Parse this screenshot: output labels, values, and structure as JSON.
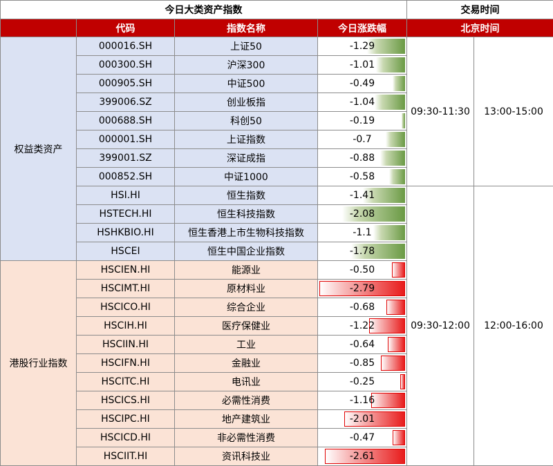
{
  "header": {
    "title": "今日大类资产指数",
    "trade_time_title": "交易时间",
    "col_code": "代码",
    "col_name": "指数名称",
    "col_change": "今日涨跌幅",
    "col_beijing_time": "北京时间"
  },
  "categories": {
    "equity": "权益类资产",
    "hk_industry": "港股行业指数"
  },
  "times": {
    "a_morning": "09:30-11:30",
    "a_afternoon": "13:00-15:00",
    "hk_morning": "09:30-12:00",
    "hk_afternoon": "12:00-16:00"
  },
  "rows": [
    {
      "code": "000016.SH",
      "name": "上证50",
      "change": "-1.29",
      "value": -1.29,
      "color": "#6a9a44"
    },
    {
      "code": "000300.SH",
      "name": "沪深300",
      "change": "-1.01",
      "value": -1.01,
      "color": "#6a9a44"
    },
    {
      "code": "000905.SH",
      "name": "中证500",
      "change": "-0.49",
      "value": -0.49,
      "color": "#6a9a44"
    },
    {
      "code": "399006.SZ",
      "name": "创业板指",
      "change": "-1.04",
      "value": -1.04,
      "color": "#6a9a44"
    },
    {
      "code": "000688.SH",
      "name": "科创50",
      "change": "-0.19",
      "value": -0.19,
      "color": "#6a9a44"
    },
    {
      "code": "000001.SH",
      "name": "上证指数",
      "change": "-0.7",
      "value": -0.7,
      "color": "#6a9a44"
    },
    {
      "code": "399001.SZ",
      "name": "深证成指",
      "change": "-0.88",
      "value": -0.88,
      "color": "#6a9a44"
    },
    {
      "code": "000852.SH",
      "name": "中证1000",
      "change": "-0.58",
      "value": -0.58,
      "color": "#6a9a44"
    },
    {
      "code": "HSI.HI",
      "name": "恒生指数",
      "change": "-1.41",
      "value": -1.41,
      "color": "#6a9a44"
    },
    {
      "code": "HSTECH.HI",
      "name": "恒生科技指数",
      "change": "-2.08",
      "value": -2.08,
      "color": "#6a9a44"
    },
    {
      "code": "HSHKBIO.HI",
      "name": "恒生香港上市生物科技指数",
      "change": "-1.1",
      "value": -1.1,
      "color": "#6a9a44"
    },
    {
      "code": "HSCEI",
      "name": "恒生中国企业指数",
      "change": "-1.78",
      "value": -1.78,
      "color": "#6a9a44"
    },
    {
      "code": "HSCIEN.HI",
      "name": "能源业",
      "change": "-0.50",
      "value": -0.5,
      "color": "#e81c1c"
    },
    {
      "code": "HSCIMT.HI",
      "name": "原材料业",
      "change": "-2.79",
      "value": -2.79,
      "color": "#e81c1c"
    },
    {
      "code": "HSCICO.HI",
      "name": "综合企业",
      "change": "-0.68",
      "value": -0.68,
      "color": "#e81c1c"
    },
    {
      "code": "HSCIH.HI",
      "name": "医疗保健业",
      "change": "-1.22",
      "value": -1.22,
      "color": "#e81c1c"
    },
    {
      "code": "HSCIIN.HI",
      "name": "工业",
      "change": "-0.64",
      "value": -0.64,
      "color": "#e81c1c"
    },
    {
      "code": "HSCIFN.HI",
      "name": "金融业",
      "change": "-0.85",
      "value": -0.85,
      "color": "#e81c1c"
    },
    {
      "code": "HSCITC.HI",
      "name": "电讯业",
      "change": "-0.25",
      "value": -0.25,
      "color": "#e81c1c"
    },
    {
      "code": "HSCICS.HI",
      "name": "必需性消费",
      "change": "-1.16",
      "value": -1.16,
      "color": "#e81c1c"
    },
    {
      "code": "HSCIPC.HI",
      "name": "地产建筑业",
      "change": "-2.01",
      "value": -2.01,
      "color": "#e81c1c"
    },
    {
      "code": "HSCICD.HI",
      "name": "非必需性消费",
      "change": "-0.47",
      "value": -0.47,
      "color": "#e81c1c"
    },
    {
      "code": "HSCIIT.HI",
      "name": "资讯科技业",
      "change": "-2.61",
      "value": -2.61,
      "color": "#e81c1c"
    }
  ]
}
